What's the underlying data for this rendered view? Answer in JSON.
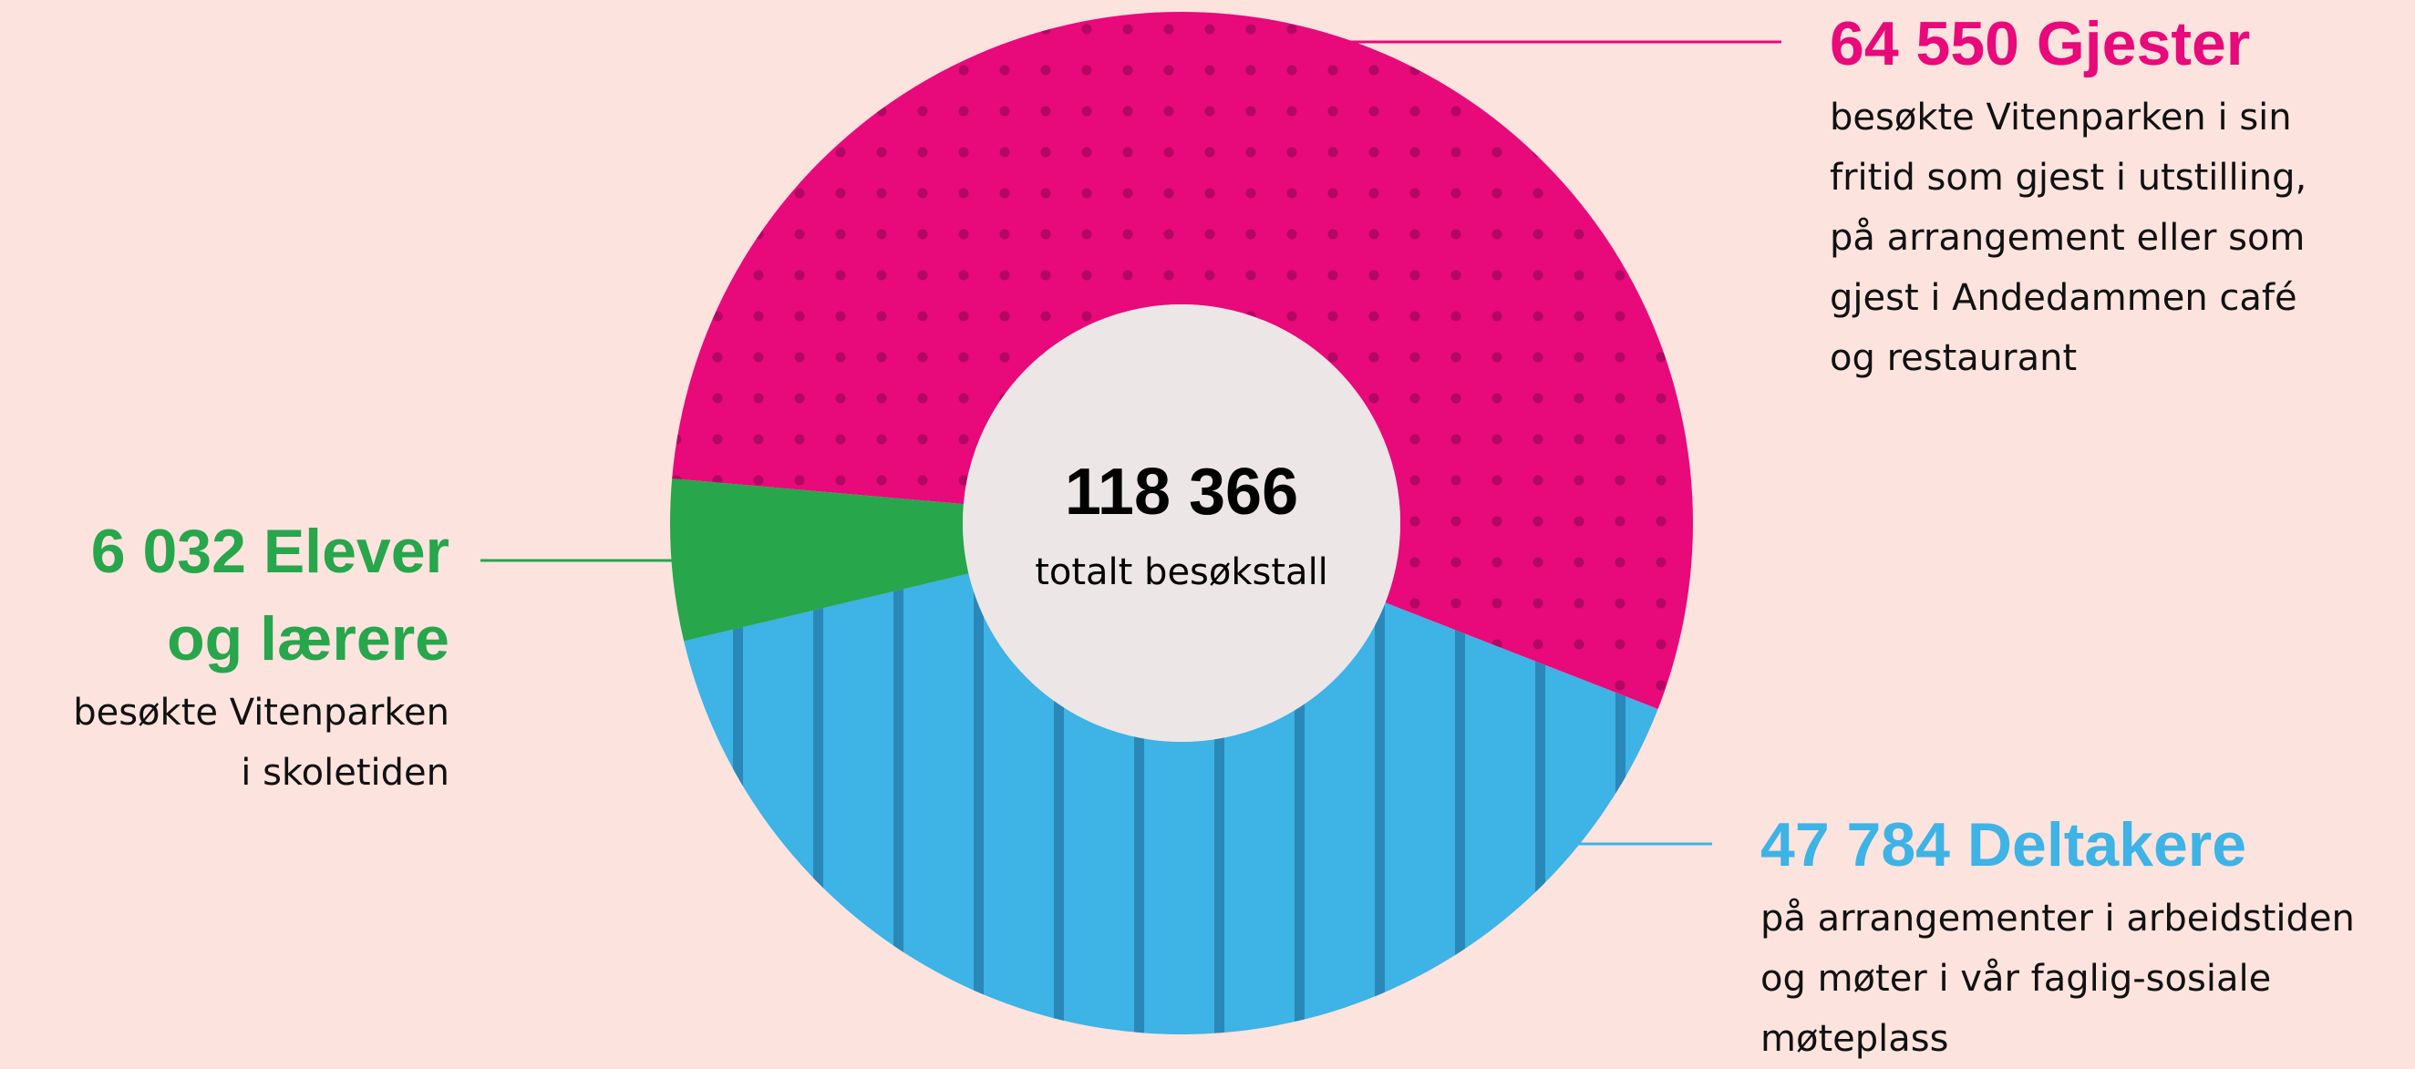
{
  "chart_data": {
    "type": "pie",
    "donut": true,
    "categories": [
      "Gjester",
      "Deltakere",
      "Elever og lærere"
    ],
    "values": [
      64550,
      47784,
      6032
    ],
    "value_labels": [
      "64 550",
      "47 784",
      "6 032"
    ],
    "colors": [
      "#e8097a",
      "#3db3e6",
      "#27a64c"
    ],
    "patterns": [
      "dots",
      "stripes",
      "none"
    ],
    "descriptions": [
      [
        "besøkte Vitenparken i sin",
        "fritid som gjest i utstilling,",
        "på arrangement eller som",
        "gjest i Andedammen café",
        "og restaurant"
      ],
      [
        "på arrangementer i arbeidstiden",
        "og møter i vår faglig-sosiale",
        "møteplass"
      ],
      [
        "besøkte Vitenparken",
        "i skoletiden"
      ]
    ],
    "center_label": "118 366",
    "center_text": "totalt besøkstall"
  }
}
